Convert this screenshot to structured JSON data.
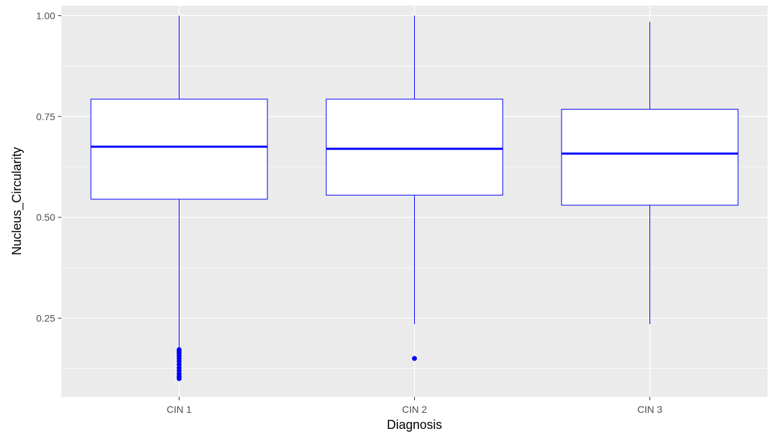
{
  "chart_data": {
    "type": "box",
    "title": "",
    "xlabel": "Diagnosis",
    "ylabel": "Nucleus_Circularity",
    "ylim": [
      0.055,
      1.025
    ],
    "yticks": [
      0.25,
      0.5,
      0.75,
      1.0
    ],
    "ytick_labels": [
      "0.25",
      "0.50",
      "0.75",
      "1.00"
    ],
    "categories": [
      "CIN 1",
      "CIN 2",
      "CIN 3"
    ],
    "boxes": [
      {
        "category": "CIN 1",
        "whisker_low": 0.175,
        "q1": 0.545,
        "median": 0.675,
        "q3": 0.793,
        "whisker_high": 1.0,
        "outliers": [
          0.172,
          0.168,
          0.163,
          0.157,
          0.15,
          0.143,
          0.135,
          0.127,
          0.12,
          0.112,
          0.105,
          0.1
        ]
      },
      {
        "category": "CIN 2",
        "whisker_low": 0.235,
        "q1": 0.555,
        "median": 0.67,
        "q3": 0.793,
        "whisker_high": 1.0,
        "outliers": [
          0.15
        ]
      },
      {
        "category": "CIN 3",
        "whisker_low": 0.235,
        "q1": 0.53,
        "median": 0.658,
        "q3": 0.768,
        "whisker_high": 0.985,
        "outliers": []
      }
    ],
    "grid": true,
    "legend": "none",
    "colors": {
      "box_line": "#0000ff",
      "box_fill": "#ffffff",
      "panel": "#ebebeb",
      "grid": "#ffffff"
    }
  }
}
